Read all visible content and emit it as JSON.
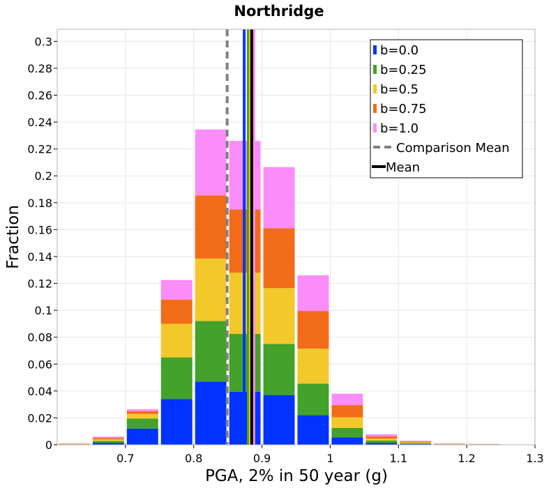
{
  "chart_data": {
    "type": "bar",
    "stacked": true,
    "title": "Northridge",
    "xlabel": "PGA, 2% in 50 year (g)",
    "ylabel": "Fraction",
    "xlim": [
      0.6,
      1.3
    ],
    "ylim": [
      0,
      0.309
    ],
    "xticks": [
      "0.7",
      "0.8",
      "0.9",
      "1",
      "1.1",
      "1.2",
      "1.3"
    ],
    "yticks": [
      "0",
      "0.02",
      "0.04",
      "0.06",
      "0.08",
      "0.1",
      "0.12",
      "0.14",
      "0.16",
      "0.18",
      "0.2",
      "0.22",
      "0.24",
      "0.26",
      "0.28",
      "0.3"
    ],
    "bin_width": 0.05,
    "bin_centers": [
      0.625,
      0.675,
      0.725,
      0.775,
      0.825,
      0.875,
      0.925,
      0.975,
      1.025,
      1.075,
      1.125,
      1.175,
      1.225
    ],
    "series": [
      {
        "name": "b=0.0",
        "color": "#0033ff",
        "values": [
          0.0002,
          0.0015,
          0.012,
          0.034,
          0.047,
          0.0395,
          0.037,
          0.022,
          0.0055,
          0.0015,
          0.0006,
          0.0002,
          0.0001
        ]
      },
      {
        "name": "b=0.25",
        "color": "#44a12a",
        "values": [
          0.0002,
          0.0013,
          0.0075,
          0.031,
          0.045,
          0.043,
          0.038,
          0.0235,
          0.007,
          0.0016,
          0.0006,
          0.0002,
          0.0001
        ]
      },
      {
        "name": "b=0.5",
        "color": "#f2c82a",
        "values": [
          0.0002,
          0.0012,
          0.0035,
          0.025,
          0.0465,
          0.0455,
          0.0415,
          0.026,
          0.008,
          0.0015,
          0.0006,
          0.0002,
          0.0002
        ]
      },
      {
        "name": "b=0.75",
        "color": "#f26b18",
        "values": [
          0.0002,
          0.0011,
          0.002,
          0.018,
          0.047,
          0.047,
          0.0445,
          0.028,
          0.009,
          0.0016,
          0.0006,
          0.0002,
          0.0002
        ]
      },
      {
        "name": "b=1.0",
        "color": "#fb8df8",
        "values": [
          0.0002,
          0.001,
          0.0015,
          0.0145,
          0.049,
          0.051,
          0.0455,
          0.0265,
          0.0085,
          0.0016,
          0.0006,
          0.0002,
          0.0001
        ]
      }
    ],
    "mean_lines": [
      {
        "series": "b=0.0",
        "x": 0.874,
        "color": "#0033ff"
      },
      {
        "series": "b=0.25",
        "x": 0.88,
        "color": "#44a12a"
      },
      {
        "series": "b=0.5",
        "x": 0.883,
        "color": "#f2c82a"
      },
      {
        "series": "b=0.75",
        "x": 0.885,
        "color": "#f26b18"
      },
      {
        "series": "b=1.0",
        "x": 0.888,
        "color": "#fb8df8"
      }
    ],
    "comparison_mean": {
      "x": 0.849,
      "label": "Comparison Mean",
      "color": "#808080"
    },
    "mean": {
      "x": 0.885,
      "label": "Mean",
      "color": "#000000"
    },
    "legend": {
      "placement": "top-right",
      "entries": [
        "b=0.0",
        "b=0.25",
        "b=0.5",
        "b=0.75",
        "b=1.0",
        "Comparison Mean",
        "Mean"
      ]
    },
    "grid": true
  }
}
